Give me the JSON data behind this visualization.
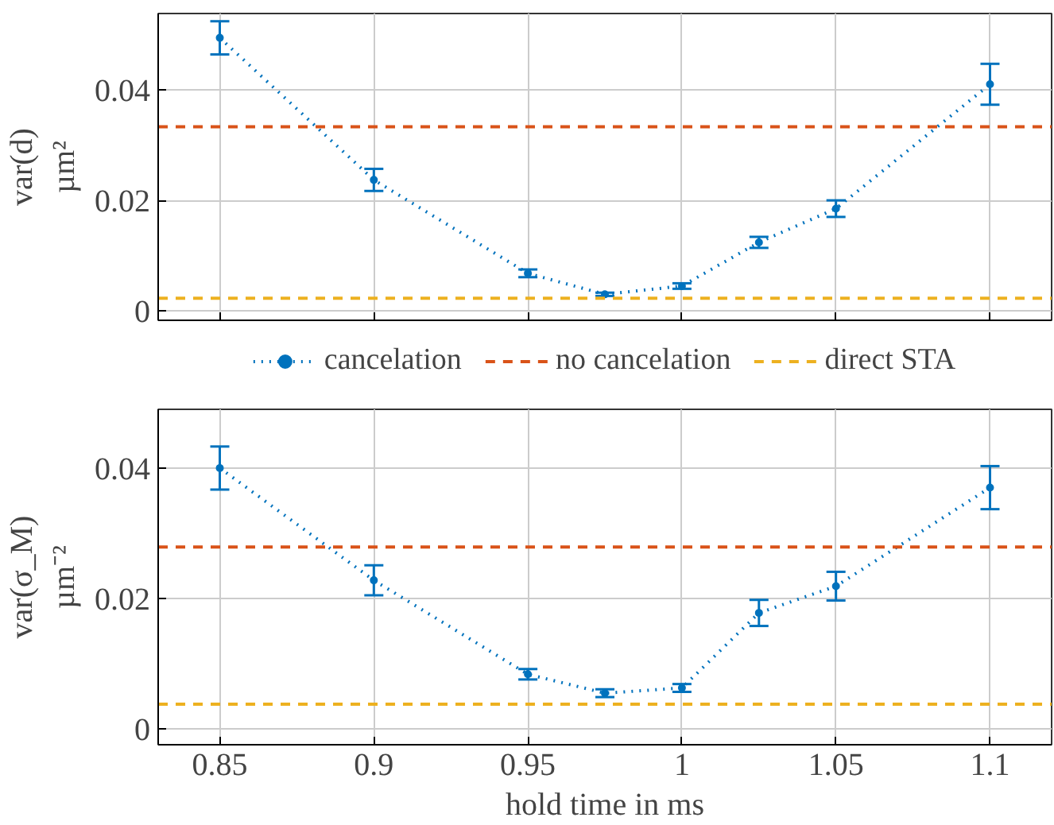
{
  "chart_data": [
    {
      "type": "line",
      "ylabel": "var(d)\nµm²",
      "x": [
        0.85,
        0.9,
        0.95,
        0.975,
        1.0,
        1.025,
        1.05,
        1.1
      ],
      "xlim": [
        0.83,
        1.12
      ],
      "xticks": [
        0.85,
        0.9,
        0.95,
        1,
        1.05,
        1.1
      ],
      "ylim": [
        -0.0017,
        0.0538
      ],
      "yticks": [
        0,
        0.02,
        0.04
      ],
      "tick_labels": "y",
      "grid": true,
      "legend": "bottom",
      "marker": "circle",
      "line_style": "dotted",
      "series": [
        {
          "name": "cancelation",
          "color": "#0072bd",
          "values": [
            0.0494,
            0.0237,
            0.0068,
            0.003,
            0.0045,
            0.0124,
            0.0185,
            0.041
          ],
          "errors": [
            0.003,
            0.002,
            0.0007,
            0.0003,
            0.0005,
            0.001,
            0.0015,
            0.0037
          ]
        }
      ],
      "ref_lines": [
        {
          "axis": "y",
          "value": 0.0333,
          "label": "no cancelation",
          "color": "#d95319",
          "line_style": "dashed"
        },
        {
          "axis": "y",
          "value": 0.0023,
          "label": "direct STA",
          "color": "#edb120",
          "line_style": "dashed"
        }
      ]
    },
    {
      "type": "line",
      "ylabel": "var(σ_M)\nµm⁻²",
      "xlabel": "hold time in ms",
      "x": [
        0.85,
        0.9,
        0.95,
        0.975,
        1.0,
        1.025,
        1.05,
        1.1
      ],
      "xlim": [
        0.83,
        1.12
      ],
      "xticks": [
        0.85,
        0.9,
        0.95,
        1,
        1.05,
        1.1
      ],
      "ylim": [
        -0.0024,
        0.049
      ],
      "yticks": [
        0,
        0.02,
        0.04
      ],
      "grid": true,
      "marker": "circle",
      "line_style": "dotted",
      "series": [
        {
          "color": "#0072bd",
          "values": [
            0.04,
            0.0228,
            0.0084,
            0.0055,
            0.0063,
            0.0178,
            0.0219,
            0.037
          ],
          "errors": [
            0.0033,
            0.0023,
            0.0008,
            0.0006,
            0.0006,
            0.002,
            0.0022,
            0.0033
          ]
        }
      ],
      "ref_lines": [
        {
          "axis": "y",
          "value": 0.0279,
          "color": "#d95319",
          "line_style": "dashed"
        },
        {
          "axis": "y",
          "value": 0.0038,
          "color": "#edb120",
          "line_style": "dashed"
        }
      ]
    }
  ]
}
